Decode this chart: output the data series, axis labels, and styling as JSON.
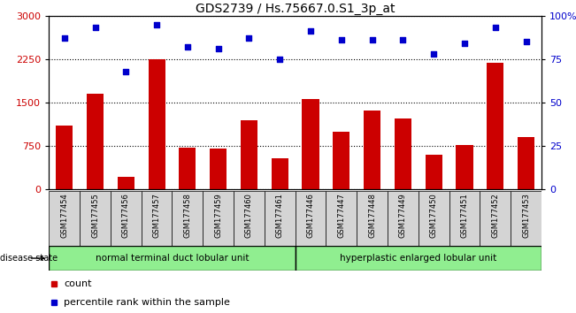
{
  "title": "GDS2739 / Hs.75667.0.S1_3p_at",
  "samples": [
    "GSM177454",
    "GSM177455",
    "GSM177456",
    "GSM177457",
    "GSM177458",
    "GSM177459",
    "GSM177460",
    "GSM177461",
    "GSM177446",
    "GSM177447",
    "GSM177448",
    "GSM177449",
    "GSM177450",
    "GSM177451",
    "GSM177452",
    "GSM177453"
  ],
  "counts": [
    1100,
    1650,
    220,
    2250,
    720,
    700,
    1200,
    530,
    1560,
    1000,
    1360,
    1230,
    600,
    770,
    2180,
    900
  ],
  "percentiles": [
    87,
    93,
    68,
    95,
    82,
    81,
    87,
    75,
    91,
    86,
    86,
    86,
    78,
    84,
    93,
    85
  ],
  "bar_color": "#cc0000",
  "dot_color": "#0000cc",
  "group1_label": "normal terminal duct lobular unit",
  "group2_label": "hyperplastic enlarged lobular unit",
  "group1_count": 8,
  "group2_count": 8,
  "left_ylim": [
    0,
    3000
  ],
  "right_ylim": [
    0,
    100
  ],
  "left_yticks": [
    0,
    750,
    1500,
    2250,
    3000
  ],
  "right_yticks": [
    0,
    25,
    50,
    75,
    100
  ],
  "disease_state_label": "disease state",
  "legend_count_label": "count",
  "legend_pct_label": "percentile rank within the sample",
  "bg_color_sample": "#d4d4d4",
  "group_green": "#90ee90",
  "title_fontsize": 10,
  "bar_width": 0.55
}
